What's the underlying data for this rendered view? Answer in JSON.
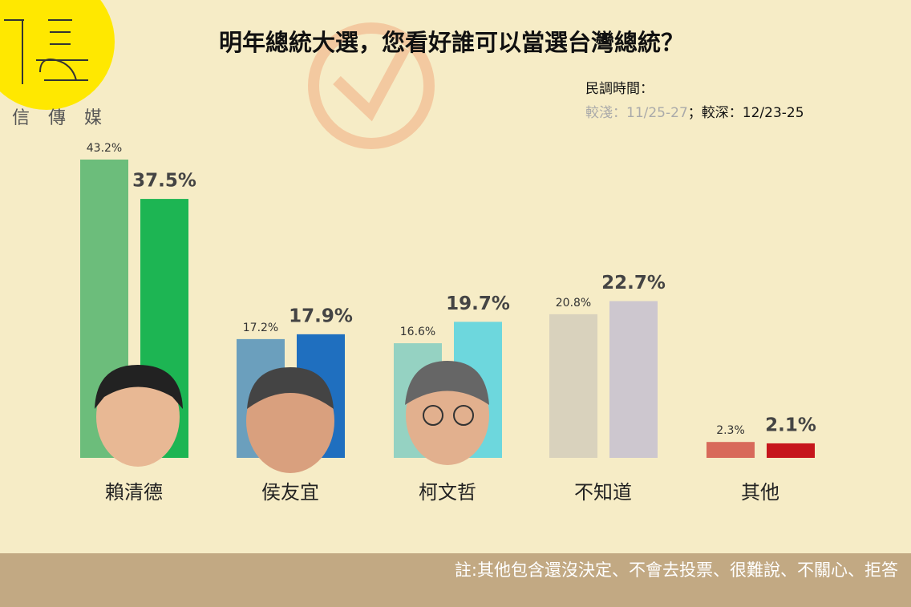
{
  "logo": {
    "text": "信 傳 媒"
  },
  "chart_data": {
    "type": "grouped_bar",
    "title": "明年總統大選，您看好誰可以當選台灣總統？",
    "legend_title": "民調時間：",
    "legend_separator": "；",
    "categories": [
      "賴清德",
      "侯友宜",
      "柯文哲",
      "不知道",
      "其他"
    ],
    "series": [
      {
        "name": "較淺：11/25-27",
        "colors": [
          "#6cbd7b",
          "#6b9fbd",
          "#95d2c2",
          "#d9d2bd",
          "#d86a5a"
        ],
        "values": [
          43.2,
          17.2,
          16.6,
          20.8,
          2.3
        ],
        "value_labels": [
          "43.2%",
          "17.2%",
          "16.6%",
          "20.8%",
          "2.3%"
        ]
      },
      {
        "name": "較深：12/23-25",
        "colors": [
          "#1db553",
          "#1f6fbf",
          "#6dd7dd",
          "#cdc7cf",
          "#c6161c"
        ],
        "values": [
          37.5,
          17.9,
          19.7,
          22.7,
          2.1
        ],
        "value_labels": [
          "37.5%",
          "17.9%",
          "19.7%",
          "22.7%",
          "2.1%"
        ]
      }
    ],
    "ylim": [
      0,
      45
    ]
  },
  "note": "註:其他包含還沒決定、不會去投票、很難說、不關心、拒答"
}
